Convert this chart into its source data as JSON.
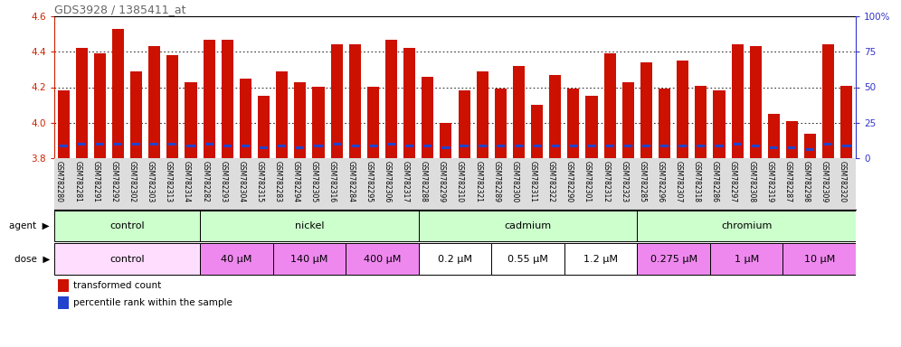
{
  "title": "GDS3928 / 1385411_at",
  "samples": [
    "GSM782280",
    "GSM782281",
    "GSM782291",
    "GSM782292",
    "GSM782302",
    "GSM782303",
    "GSM782313",
    "GSM782314",
    "GSM782282",
    "GSM782293",
    "GSM782304",
    "GSM782315",
    "GSM782283",
    "GSM782294",
    "GSM782305",
    "GSM782316",
    "GSM782284",
    "GSM782295",
    "GSM782306",
    "GSM782317",
    "GSM782288",
    "GSM782299",
    "GSM782310",
    "GSM782321",
    "GSM782289",
    "GSM782300",
    "GSM782311",
    "GSM782322",
    "GSM782290",
    "GSM782301",
    "GSM782312",
    "GSM782323",
    "GSM782285",
    "GSM782296",
    "GSM782307",
    "GSM782318",
    "GSM782286",
    "GSM782297",
    "GSM782308",
    "GSM782319",
    "GSM782287",
    "GSM782298",
    "GSM782309",
    "GSM782320"
  ],
  "red_values": [
    4.18,
    4.42,
    4.39,
    4.53,
    4.29,
    4.43,
    4.38,
    4.23,
    4.47,
    4.47,
    4.25,
    4.15,
    4.29,
    4.23,
    4.2,
    4.44,
    4.44,
    4.2,
    4.47,
    4.42,
    4.26,
    4.0,
    4.18,
    4.29,
    4.19,
    4.32,
    4.1,
    4.27,
    4.19,
    4.15,
    4.39,
    4.23,
    4.34,
    4.19,
    4.35,
    4.21,
    4.18,
    4.44,
    4.43,
    4.05,
    4.01,
    3.94,
    4.44,
    4.21
  ],
  "blue_positions": [
    3.86,
    3.87,
    3.87,
    3.87,
    3.87,
    3.87,
    3.87,
    3.86,
    3.87,
    3.86,
    3.86,
    3.85,
    3.86,
    3.85,
    3.86,
    3.87,
    3.86,
    3.86,
    3.87,
    3.86,
    3.86,
    3.85,
    3.86,
    3.86,
    3.86,
    3.86,
    3.86,
    3.86,
    3.86,
    3.86,
    3.86,
    3.86,
    3.86,
    3.86,
    3.86,
    3.86,
    3.86,
    3.87,
    3.86,
    3.85,
    3.85,
    3.84,
    3.87,
    3.86
  ],
  "ymin": 3.8,
  "ymax": 4.6,
  "agents": [
    {
      "label": "control",
      "start": 0,
      "end": 8,
      "color": "#ccffcc"
    },
    {
      "label": "nickel",
      "start": 8,
      "end": 20,
      "color": "#ccffcc"
    },
    {
      "label": "cadmium",
      "start": 20,
      "end": 32,
      "color": "#ccffcc"
    },
    {
      "label": "chromium",
      "start": 32,
      "end": 44,
      "color": "#ccffcc"
    }
  ],
  "doses": [
    {
      "label": "control",
      "start": 0,
      "end": 8,
      "color": "#ffddff"
    },
    {
      "label": "40 μM",
      "start": 8,
      "end": 12,
      "color": "#ee88ee"
    },
    {
      "label": "140 μM",
      "start": 12,
      "end": 16,
      "color": "#ee88ee"
    },
    {
      "label": "400 μM",
      "start": 16,
      "end": 20,
      "color": "#ee88ee"
    },
    {
      "label": "0.2 μM",
      "start": 20,
      "end": 24,
      "color": "#ffffff"
    },
    {
      "label": "0.55 μM",
      "start": 24,
      "end": 28,
      "color": "#ffffff"
    },
    {
      "label": "1.2 μM",
      "start": 28,
      "end": 32,
      "color": "#ffffff"
    },
    {
      "label": "0.275 μM",
      "start": 32,
      "end": 36,
      "color": "#ee88ee"
    },
    {
      "label": "1 μM",
      "start": 36,
      "end": 40,
      "color": "#ee88ee"
    },
    {
      "label": "10 μM",
      "start": 40,
      "end": 44,
      "color": "#ee88ee"
    }
  ],
  "bar_color": "#cc1100",
  "blue_color": "#2244cc",
  "left_axis_color": "#cc2200",
  "right_axis_color": "#3333cc",
  "xtick_bg": "#dddddd",
  "plot_bg": "#ffffff"
}
